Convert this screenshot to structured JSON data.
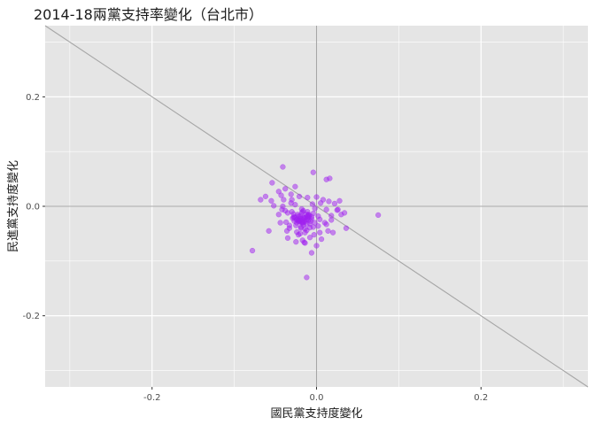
{
  "chart_data": {
    "type": "scatter",
    "title": "2014-18兩黨支持率變化（台北市）",
    "xlabel": "國民黨支持度變化",
    "ylabel": "民進黨支持度變化",
    "xlim": [
      -0.33,
      0.33
    ],
    "ylim": [
      -0.33,
      0.33
    ],
    "x_ticks": [
      -0.2,
      0.0,
      0.2
    ],
    "x_tick_labels": [
      "-0.2",
      "0.0",
      "0.2"
    ],
    "y_ticks": [
      -0.2,
      0.0,
      0.2
    ],
    "y_tick_labels": [
      "-0.2",
      "0.0",
      "0.2"
    ],
    "grid": true,
    "reference_lines": {
      "horizontal": 0,
      "vertical": 0,
      "diagonal_slope": -1
    },
    "point_color": "#a020f0",
    "panel_background": "#e5e5e5",
    "grid_color": "#ffffff",
    "reference_line_color": "#a6a6a6",
    "points": {
      "x": [
        -0.041,
        -0.004,
        0.016,
        0.012,
        -0.054,
        -0.026,
        -0.038,
        -0.046,
        -0.062,
        -0.055,
        -0.068,
        -0.043,
        -0.031,
        -0.021,
        -0.011,
        0.0,
        0.008,
        0.015,
        0.022,
        0.028,
        0.026,
        0.034,
        0.036,
        -0.024,
        0.02,
        0.012,
        -0.078,
        -0.058,
        -0.035,
        -0.015,
        0.0,
        -0.006,
        -0.017,
        0.075,
        0.004,
        0.002,
        -0.022,
        -0.012,
        -0.008,
        -0.002,
        -0.019,
        -0.01,
        -0.028,
        -0.042,
        -0.037,
        0.018,
        0.025,
        0.03,
        -0.052,
        -0.046,
        -0.036,
        -0.044,
        -0.03,
        0.005,
        0.012,
        0.018,
        -0.025,
        -0.014,
        -0.003,
        0.006,
        -0.041,
        -0.033,
        -0.027,
        -0.016,
        -0.004,
        0.004,
        0.01,
        -0.038,
        -0.02,
        -0.008,
        0.014,
        -0.012,
        -0.018,
        -0.022,
        -0.016,
        -0.01,
        -0.02,
        -0.025,
        -0.014,
        -0.006,
        -0.03,
        -0.018,
        -0.012,
        -0.024,
        -0.008,
        -0.015,
        -0.021,
        -0.027,
        -0.011,
        -0.004,
        -0.033,
        -0.019,
        -0.013,
        -0.009,
        -0.026,
        -0.017,
        -0.023,
        -0.014,
        -0.002,
        -0.029,
        -0.035,
        -0.005,
        0.002,
        -0.04,
        -0.031,
        -0.007,
        -0.02,
        -0.016,
        -0.012,
        -0.022,
        -0.018,
        -0.01,
        -0.024,
        -0.014,
        -0.028,
        -0.02,
        -0.006,
        -0.016,
        -0.012,
        -0.026,
        -0.018,
        -0.009,
        -0.021,
        -0.015,
        -0.024,
        -0.017,
        -0.013,
        -0.019,
        -0.011,
        -0.022
      ],
      "y": [
        0.072,
        0.062,
        0.051,
        0.049,
        0.043,
        0.036,
        0.032,
        0.027,
        0.018,
        0.01,
        0.012,
        0.02,
        0.022,
        0.018,
        0.016,
        0.017,
        0.012,
        0.009,
        0.005,
        0.01,
        -0.006,
        -0.012,
        -0.04,
        -0.047,
        -0.048,
        -0.033,
        -0.081,
        -0.045,
        -0.058,
        -0.066,
        -0.072,
        -0.085,
        -0.062,
        -0.016,
        -0.048,
        -0.036,
        -0.052,
        -0.044,
        -0.057,
        -0.03,
        -0.038,
        -0.025,
        -0.02,
        -0.006,
        -0.029,
        -0.025,
        -0.007,
        -0.015,
        0.001,
        -0.015,
        -0.045,
        -0.03,
        0.012,
        0.006,
        -0.006,
        -0.017,
        -0.065,
        -0.067,
        -0.052,
        -0.06,
        0.0,
        -0.04,
        -0.027,
        -0.008,
        -0.013,
        -0.024,
        -0.03,
        -0.008,
        -0.05,
        -0.039,
        -0.045,
        -0.13,
        -0.012,
        -0.025,
        -0.03,
        -0.02,
        -0.018,
        -0.035,
        -0.041,
        -0.023,
        -0.01,
        -0.005,
        -0.015,
        -0.03,
        -0.032,
        -0.022,
        -0.028,
        -0.02,
        -0.01,
        -0.038,
        -0.035,
        -0.04,
        -0.025,
        -0.018,
        0.003,
        -0.01,
        -0.015,
        -0.048,
        -0.004,
        -0.022,
        -0.012,
        0.004,
        -0.018,
        0.012,
        0.006,
        -0.027,
        -0.026,
        -0.02,
        -0.032,
        -0.018,
        -0.03,
        -0.015,
        -0.024,
        -0.028,
        -0.014,
        -0.022,
        -0.019,
        -0.034,
        -0.024,
        -0.02,
        -0.028,
        -0.016,
        -0.026,
        -0.021,
        -0.025,
        -0.03,
        -0.02,
        -0.023,
        -0.018,
        -0.027
      ]
    }
  }
}
